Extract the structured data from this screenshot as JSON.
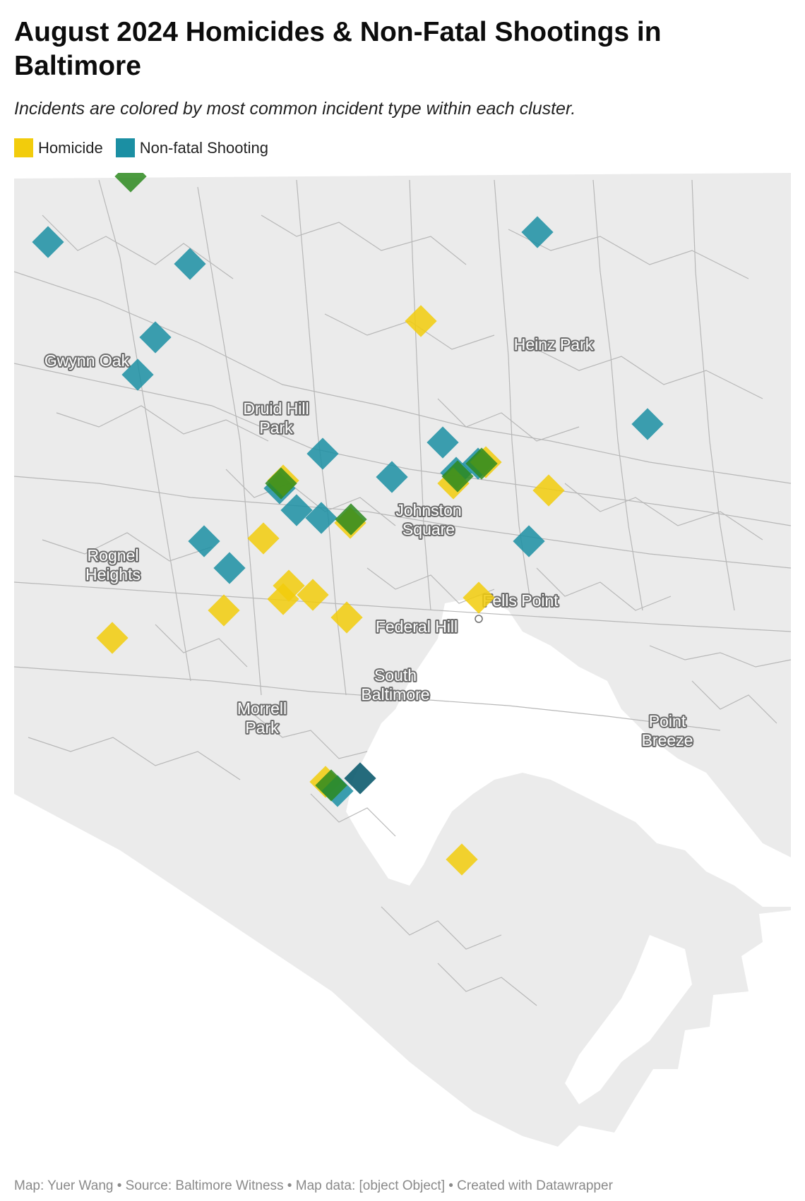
{
  "title": "August 2024 Homicides & Non-Fatal Shootings in Baltimore",
  "subtitle": "Incidents are colored by most common incident type within each cluster.",
  "legend": [
    {
      "label": "Homicide",
      "color": "#f2cc0c"
    },
    {
      "label": "Non-fatal Shooting",
      "color": "#1b8fa3"
    }
  ],
  "colors": {
    "homicide": "#f2cc0c",
    "shooting": "#1b8fa3",
    "mixed": "#2d8a1e",
    "dark_shooting": "#0d5b6e",
    "land": "#ebebeb",
    "boundaries": "#b7b7b7"
  },
  "places": [
    {
      "name": "Gwynn Oak",
      "lines": [
        "Gwynn Oak"
      ]
    },
    {
      "name": "Heinz Park",
      "lines": [
        "Heinz Park"
      ]
    },
    {
      "name": "Druid Hill Park",
      "lines": [
        "Druid Hill",
        "Park"
      ]
    },
    {
      "name": "Johnston Square",
      "lines": [
        "Johnston",
        "Square"
      ]
    },
    {
      "name": "Rognel Heights",
      "lines": [
        "Rognel",
        "Heights"
      ]
    },
    {
      "name": "Fells Point",
      "lines": [
        "Fells Point"
      ]
    },
    {
      "name": "Federal Hill",
      "lines": [
        "Federal Hill"
      ]
    },
    {
      "name": "South Baltimore",
      "lines": [
        "South",
        "Baltimore"
      ]
    },
    {
      "name": "Morrell Park",
      "lines": [
        "Morrell",
        "Park"
      ]
    },
    {
      "name": "Point Breeze",
      "lines": [
        "Point",
        "Breeze"
      ]
    }
  ],
  "footer": {
    "text": "Map: Yuer Wang • Source: Baltimore Witness • Map data: [object Object] • Created with Datawrapper"
  }
}
